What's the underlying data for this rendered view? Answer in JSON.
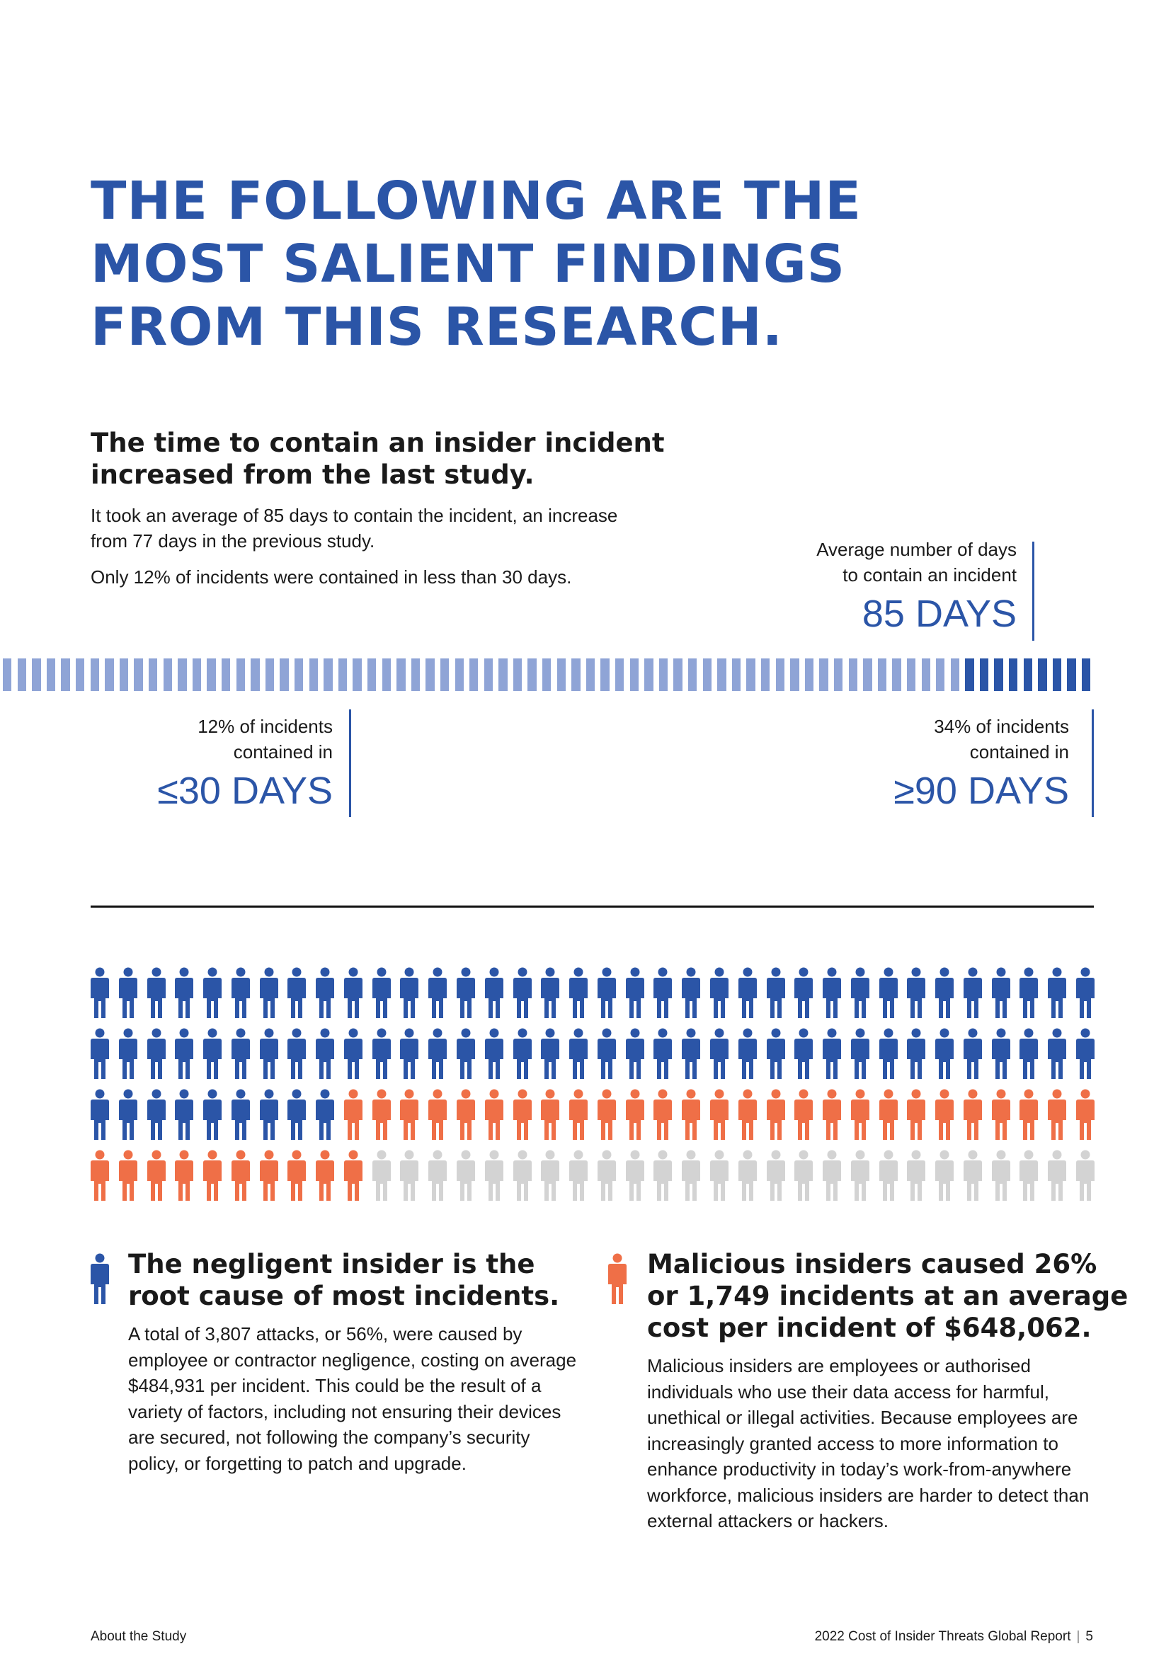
{
  "headline": {
    "lines": [
      "THE FOLLOWING ARE THE",
      "MOST SALIENT FINDINGS",
      "FROM THIS RESEARCH."
    ]
  },
  "section1": {
    "heading_lines": [
      "The time to contain an insider incident",
      "increased from the last study."
    ],
    "paragraph1": "It took an average of 85 days to contain the incident, an increase from 77 days in the previous study.",
    "paragraph2": "Only 12% of incidents were contained in less than 30 days."
  },
  "stats": {
    "average": {
      "label_lines": [
        "Average number of days",
        "to contain an incident"
      ],
      "value": "85 DAYS"
    },
    "within30": {
      "label_lines": [
        "12% of incidents",
        "contained in"
      ],
      "value": "≤30 DAYS",
      "percent": 12
    },
    "over90": {
      "label_lines": [
        "34% of incidents",
        "contained in"
      ],
      "value": "≥90 DAYS",
      "percent": 34
    }
  },
  "stripe_bar": {
    "light_count": 66,
    "dark_count": 9
  },
  "people_grid": {
    "rows": 4,
    "per_row": 36,
    "negligent_count": 81,
    "malicious_count": 37,
    "other_count": 26
  },
  "colors": {
    "brand_blue": "#2b55a7",
    "stripe_light": "#8fa4d6",
    "orange": "#ef6f47",
    "gray": "#d3d3d3"
  },
  "negligent": {
    "icon": "person-icon-blue",
    "heading_lines": [
      "The negligent insider is the",
      "root cause of most incidents."
    ],
    "body": "A total of 3,807 attacks, or 56%, were caused by employee or contractor negligence, costing on average $484,931 per incident. This could be the result of a variety of factors, including not ensuring their devices are secured, not following the company’s security policy, or forgetting to patch and upgrade."
  },
  "malicious": {
    "icon": "person-icon-orange",
    "heading_lines": [
      "Malicious insiders caused 26%",
      "or 1,749 incidents at an average",
      "cost per incident of $648,062."
    ],
    "body": "Malicious insiders are employees or authorised individuals who use their data access for harmful, unethical or illegal activities. Because employees are increasingly granted access to more information to enhance productivity in today’s work-from-anywhere workforce, malicious insiders are harder to detect than external attackers or hackers."
  },
  "footer": {
    "left": "About the Study",
    "right_title": "2022 Cost of Insider Threats Global Report",
    "page_number": "5"
  }
}
